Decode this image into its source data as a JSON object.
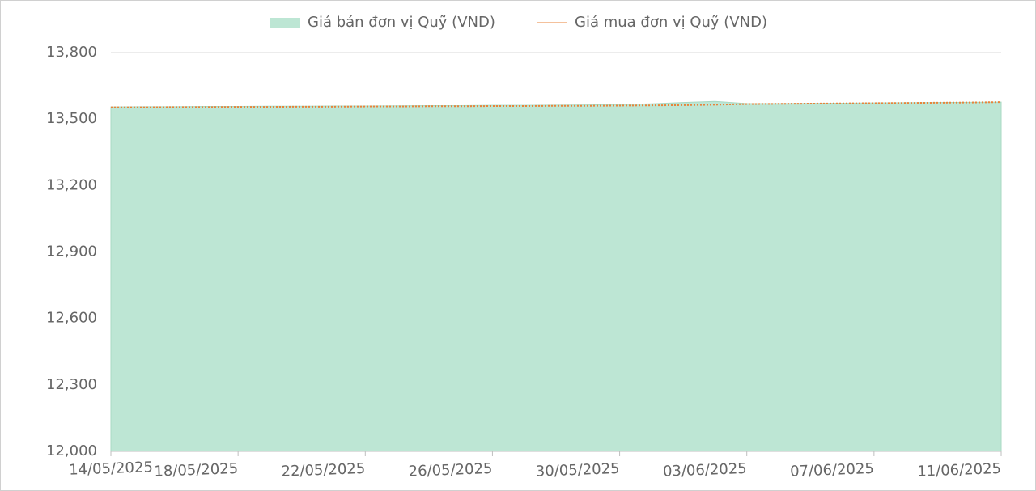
{
  "chart_data": {
    "type": "area-line",
    "x": [
      "14/05/2025",
      "15/05/2025",
      "16/05/2025",
      "17/05/2025",
      "18/05/2025",
      "19/05/2025",
      "20/05/2025",
      "21/05/2025",
      "22/05/2025",
      "23/05/2025",
      "24/05/2025",
      "25/05/2025",
      "26/05/2025",
      "27/05/2025",
      "28/05/2025",
      "29/05/2025",
      "30/05/2025",
      "31/05/2025",
      "01/06/2025",
      "02/06/2025",
      "03/06/2025",
      "04/06/2025",
      "05/06/2025",
      "06/06/2025",
      "07/06/2025",
      "08/06/2025",
      "09/06/2025",
      "10/06/2025",
      "11/06/2025"
    ],
    "series": [
      {
        "name": "Giá bán đơn vị Quỹ (VND)",
        "kind": "area",
        "color": "#bde6d4",
        "values": [
          13555,
          13556,
          13556,
          13557,
          13557,
          13558,
          13558,
          13559,
          13559,
          13560,
          13561,
          13561,
          13562,
          13562,
          13563,
          13564,
          13566,
          13569,
          13575,
          13580,
          13570,
          13570,
          13571,
          13572,
          13573,
          13574,
          13575,
          13576,
          13577
        ]
      },
      {
        "name": "Giá mua đơn vị Quỹ (VND)",
        "kind": "line",
        "color": "#e8833a",
        "values": [
          13553,
          13553,
          13554,
          13554,
          13555,
          13555,
          13556,
          13556,
          13557,
          13557,
          13558,
          13558,
          13559,
          13559,
          13560,
          13560,
          13561,
          13562,
          13563,
          13565,
          13568,
          13569,
          13570,
          13571,
          13572,
          13573,
          13574,
          13575,
          13577
        ]
      }
    ],
    "xticks": [
      "14/05/2025",
      "18/05/2025",
      "22/05/2025",
      "26/05/2025",
      "30/05/2025",
      "03/06/2025",
      "07/06/2025",
      "11/06/2025"
    ],
    "ylim": [
      12000,
      13800
    ],
    "yticks": [
      {
        "value": 12000,
        "label": "12,000"
      },
      {
        "value": 12300,
        "label": "12,300"
      },
      {
        "value": 12600,
        "label": "12,600"
      },
      {
        "value": 12900,
        "label": "12,900"
      },
      {
        "value": 13200,
        "label": "13,200"
      },
      {
        "value": 13500,
        "label": "13,500"
      },
      {
        "value": 13800,
        "label": "13,800"
      }
    ],
    "grid": true
  }
}
